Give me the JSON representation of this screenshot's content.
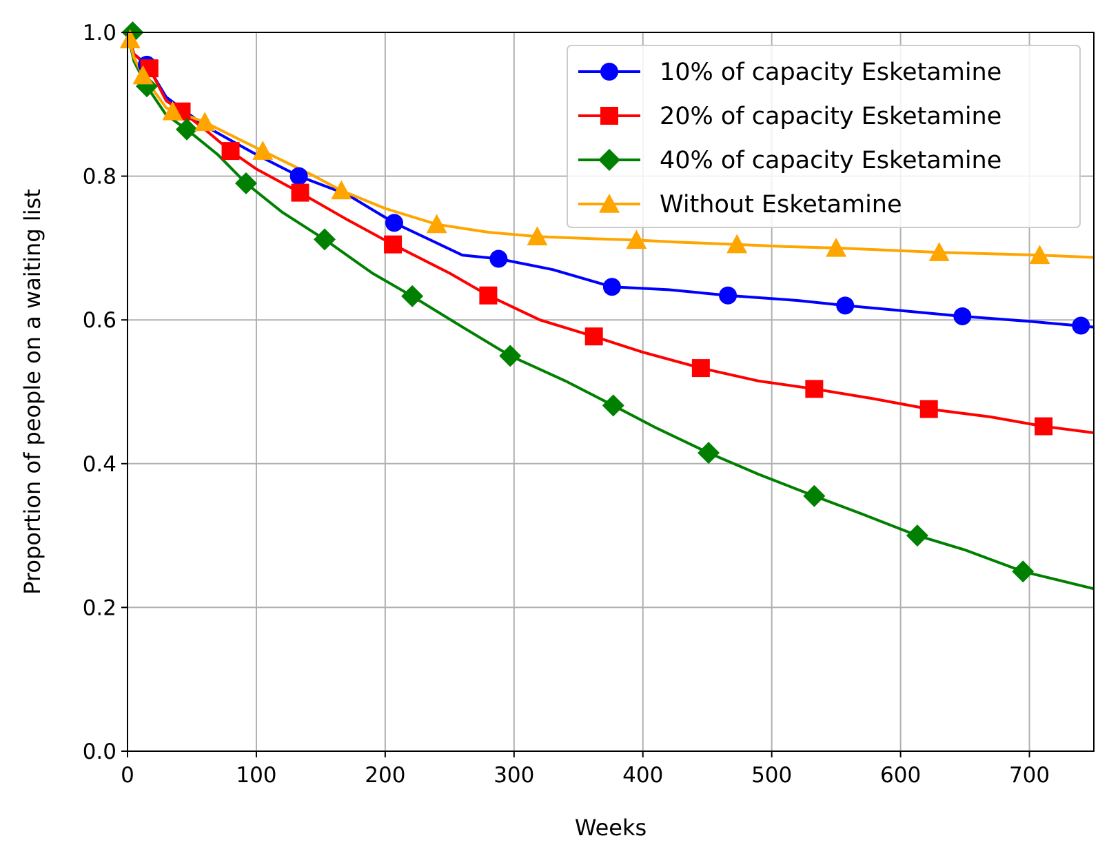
{
  "chart_data": {
    "type": "line",
    "xlabel": "Weeks",
    "ylabel": "Proportion of people on a waiting list",
    "xlim": [
      0,
      750
    ],
    "ylim": [
      0,
      1.0
    ],
    "xticks": [
      0,
      100,
      200,
      300,
      400,
      500,
      600,
      700
    ],
    "xtick_labels": [
      "0",
      "100",
      "200",
      "300",
      "400",
      "500",
      "600",
      "700"
    ],
    "yticks": [
      0.0,
      0.2,
      0.4,
      0.6,
      0.8,
      1.0
    ],
    "ytick_labels": [
      "0.0",
      "0.2",
      "0.4",
      "0.6",
      "0.8",
      "1.0"
    ],
    "grid": true,
    "legend_position": "top-right",
    "series": [
      {
        "name": "10% of capacity Esketamine",
        "color": "#0000ff",
        "marker": "circle",
        "x": [
          0,
          5,
          15,
          30,
          45,
          60,
          80,
          100,
          133,
          170,
          207,
          260,
          288,
          330,
          376,
          420,
          466,
          520,
          557,
          600,
          648,
          700,
          750
        ],
        "y": [
          1.0,
          0.97,
          0.955,
          0.91,
          0.89,
          0.87,
          0.85,
          0.83,
          0.8,
          0.775,
          0.735,
          0.69,
          0.685,
          0.67,
          0.646,
          0.642,
          0.634,
          0.627,
          0.62,
          0.613,
          0.605,
          0.598,
          0.59
        ],
        "marker_x": [
          15,
          133,
          207,
          288,
          376,
          466,
          557,
          648,
          740
        ],
        "marker_y": [
          0.955,
          0.8,
          0.735,
          0.685,
          0.646,
          0.634,
          0.62,
          0.605,
          0.592
        ]
      },
      {
        "name": "20% of capacity Esketamine",
        "color": "#ff0000",
        "marker": "square",
        "x": [
          0,
          5,
          17,
          30,
          42,
          60,
          80,
          100,
          134,
          170,
          206,
          250,
          280,
          320,
          362,
          400,
          445,
          490,
          533,
          580,
          622,
          670,
          711,
          750
        ],
        "y": [
          1.0,
          0.97,
          0.95,
          0.905,
          0.89,
          0.865,
          0.835,
          0.81,
          0.777,
          0.74,
          0.705,
          0.665,
          0.634,
          0.6,
          0.577,
          0.555,
          0.533,
          0.515,
          0.504,
          0.49,
          0.476,
          0.465,
          0.452,
          0.443
        ],
        "marker_x": [
          17,
          42,
          80,
          134,
          206,
          280,
          362,
          445,
          533,
          622,
          711
        ],
        "marker_y": [
          0.95,
          0.89,
          0.835,
          0.777,
          0.705,
          0.634,
          0.577,
          0.533,
          0.504,
          0.476,
          0.452
        ]
      },
      {
        "name": "40% of capacity Esketamine",
        "color": "#008000",
        "marker": "diamond",
        "x": [
          0,
          5,
          15,
          30,
          46,
          70,
          92,
          120,
          153,
          190,
          221,
          260,
          297,
          340,
          377,
          410,
          451,
          490,
          533,
          570,
          613,
          650,
          695,
          750
        ],
        "y": [
          1.0,
          0.96,
          0.925,
          0.885,
          0.865,
          0.83,
          0.79,
          0.75,
          0.712,
          0.665,
          0.633,
          0.59,
          0.55,
          0.515,
          0.481,
          0.45,
          0.415,
          0.385,
          0.355,
          0.33,
          0.3,
          0.28,
          0.25,
          0.226
        ],
        "marker_x": [
          4,
          15,
          46,
          92,
          153,
          221,
          297,
          377,
          451,
          533,
          613,
          695
        ],
        "marker_y": [
          1.0,
          0.925,
          0.865,
          0.79,
          0.712,
          0.633,
          0.55,
          0.481,
          0.415,
          0.355,
          0.3,
          0.25
        ]
      },
      {
        "name": "Without Esketamine",
        "color": "#ffa500",
        "marker": "triangle",
        "x": [
          0,
          5,
          12,
          30,
          60,
          105,
          145,
          166,
          200,
          240,
          280,
          318,
          360,
          395,
          430,
          473,
          510,
          550,
          590,
          630,
          670,
          708,
          750
        ],
        "y": [
          1.0,
          0.965,
          0.94,
          0.895,
          0.875,
          0.835,
          0.8,
          0.78,
          0.755,
          0.733,
          0.722,
          0.716,
          0.713,
          0.711,
          0.708,
          0.705,
          0.702,
          0.7,
          0.697,
          0.694,
          0.692,
          0.69,
          0.687
        ],
        "marker_x": [
          2,
          12,
          35,
          60,
          105,
          166,
          240,
          318,
          395,
          473,
          550,
          630,
          708
        ],
        "marker_y": [
          0.99,
          0.94,
          0.89,
          0.875,
          0.835,
          0.78,
          0.733,
          0.716,
          0.711,
          0.705,
          0.7,
          0.694,
          0.69
        ]
      }
    ]
  }
}
